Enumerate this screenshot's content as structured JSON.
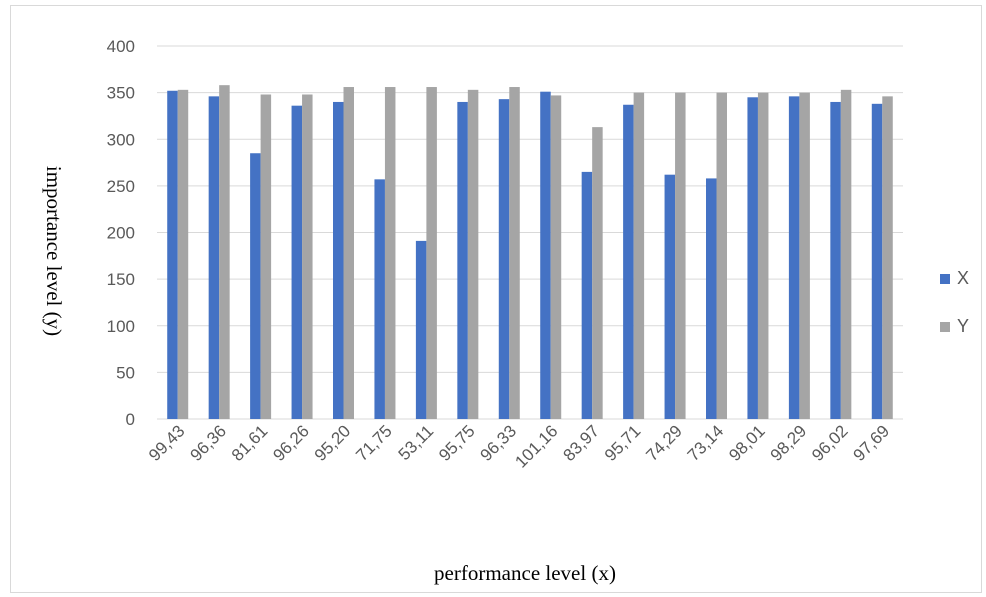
{
  "chart_data": {
    "type": "bar",
    "categories": [
      "99,43",
      "96,36",
      "81,61",
      "96,26",
      "95,20",
      "71,75",
      "53,11",
      "95,75",
      "96,33",
      "101,16",
      "83,97",
      "95,71",
      "74,29",
      "73,14",
      "98,01",
      "98,29",
      "96,02",
      "97,69"
    ],
    "series": [
      {
        "name": "X",
        "color": "#4472c4",
        "values": [
          352,
          346,
          285,
          336,
          340,
          257,
          191,
          340,
          343,
          351,
          265,
          337,
          262,
          258,
          345,
          346,
          340,
          338
        ]
      },
      {
        "name": "Y",
        "color": "#a5a5a5",
        "values": [
          353,
          358,
          348,
          348,
          356,
          356,
          356,
          353,
          356,
          347,
          313,
          350,
          350,
          350,
          350,
          350,
          353,
          346
        ]
      }
    ],
    "xlabel": "performance level (x)",
    "ylabel": "importance level (y)",
    "ylim": [
      0,
      400
    ],
    "yticks": [
      0,
      50,
      100,
      150,
      200,
      250,
      300,
      350,
      400
    ],
    "grid": true,
    "legend_position": "right"
  }
}
